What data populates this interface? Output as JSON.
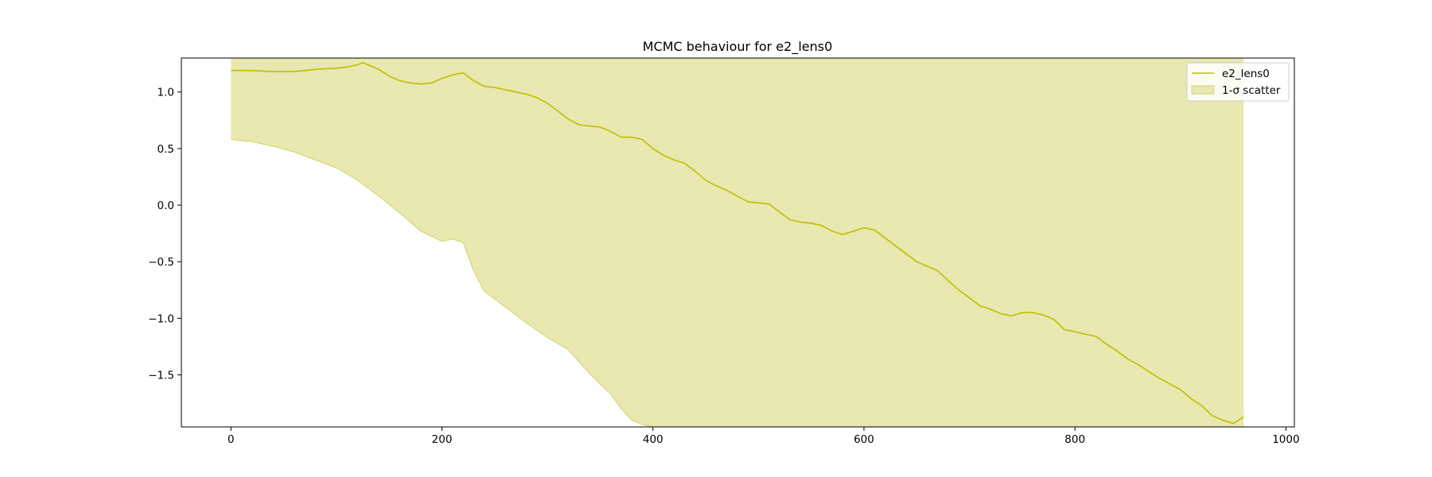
{
  "chart_data": {
    "type": "line",
    "title": "MCMC behaviour for e2_lens0",
    "xlabel": "",
    "ylabel": "",
    "xlim": [
      -47,
      1008
    ],
    "ylim": [
      -1.96,
      1.3
    ],
    "x_ticks": [
      0,
      200,
      400,
      600,
      800,
      1000
    ],
    "x_tick_labels": [
      "0",
      "200",
      "400",
      "600",
      "800",
      "1000"
    ],
    "y_ticks": [
      1.0,
      0.5,
      0.0,
      -0.5,
      -1.0,
      -1.5
    ],
    "y_tick_labels": [
      "1.0",
      "0.5",
      "0.0",
      "−0.5",
      "−1.0",
      "−1.5"
    ],
    "grid": false,
    "legend_position": "top-right",
    "colors": {
      "line": "#bfbf00",
      "band": "#e8e8b0",
      "band_edge": "#d2d26e"
    },
    "series": [
      {
        "name": "e2_lens0",
        "kind": "line",
        "x": [
          0,
          20,
          40,
          60,
          80,
          100,
          110,
          120,
          125,
          130,
          140,
          150,
          160,
          170,
          180,
          190,
          200,
          210,
          220,
          230,
          240,
          250,
          260,
          270,
          280,
          290,
          300,
          310,
          320,
          330,
          340,
          350,
          360,
          370,
          380,
          390,
          400,
          410,
          420,
          430,
          440,
          450,
          460,
          470,
          480,
          490,
          500,
          510,
          520,
          530,
          540,
          550,
          560,
          570,
          580,
          590,
          600,
          610,
          620,
          630,
          640,
          650,
          660,
          670,
          680,
          690,
          700,
          710,
          720,
          730,
          740,
          750,
          760,
          770,
          780,
          790,
          800,
          810,
          820,
          830,
          840,
          850,
          860,
          870,
          880,
          890,
          900,
          910,
          920,
          930,
          940,
          950,
          960
        ],
        "values": [
          1.19,
          1.19,
          1.18,
          1.18,
          1.2,
          1.21,
          1.22,
          1.24,
          1.26,
          1.24,
          1.2,
          1.14,
          1.1,
          1.08,
          1.07,
          1.08,
          1.12,
          1.15,
          1.17,
          1.1,
          1.05,
          1.04,
          1.02,
          1.0,
          0.98,
          0.95,
          0.9,
          0.83,
          0.76,
          0.71,
          0.7,
          0.69,
          0.65,
          0.6,
          0.6,
          0.58,
          0.5,
          0.44,
          0.4,
          0.37,
          0.3,
          0.22,
          0.17,
          0.13,
          0.08,
          0.03,
          0.02,
          0.01,
          -0.06,
          -0.13,
          -0.15,
          -0.16,
          -0.18,
          -0.23,
          -0.26,
          -0.23,
          -0.2,
          -0.22,
          -0.29,
          -0.36,
          -0.43,
          -0.5,
          -0.54,
          -0.58,
          -0.67,
          -0.75,
          -0.82,
          -0.89,
          -0.92,
          -0.96,
          -0.98,
          -0.95,
          -0.95,
          -0.97,
          -1.01,
          -1.1,
          -1.12,
          -1.14,
          -1.16,
          -1.23,
          -1.29,
          -1.36,
          -1.41,
          -1.47,
          -1.53,
          -1.58,
          -1.63,
          -1.71,
          -1.77,
          -1.86,
          -1.9,
          -1.93,
          -1.87
        ]
      },
      {
        "name": "1-σ scatter",
        "kind": "band",
        "x": [
          0,
          20,
          40,
          60,
          80,
          100,
          120,
          140,
          160,
          180,
          200,
          210,
          220,
          230,
          240,
          260,
          280,
          300,
          320,
          340,
          360,
          370,
          380,
          390,
          400,
          420,
          440,
          460,
          480,
          500,
          550,
          600,
          650,
          700,
          750,
          800,
          850,
          900,
          960
        ],
        "lower": [
          0.58,
          0.56,
          0.52,
          0.47,
          0.4,
          0.33,
          0.22,
          0.08,
          -0.07,
          -0.23,
          -0.32,
          -0.3,
          -0.33,
          -0.58,
          -0.76,
          -0.9,
          -1.04,
          -1.17,
          -1.28,
          -1.49,
          -1.67,
          -1.8,
          -1.9,
          -1.94,
          -1.96,
          -1.96,
          -1.96,
          -1.96,
          -1.96,
          -1.96,
          -1.96,
          -1.96,
          -1.96,
          -1.96,
          -1.96,
          -1.96,
          -1.96,
          -1.96,
          -1.96
        ],
        "upper": [
          1.3,
          1.3,
          1.3,
          1.3,
          1.3,
          1.3,
          1.3,
          1.3,
          1.3,
          1.3,
          1.3,
          1.3,
          1.3,
          1.3,
          1.3,
          1.3,
          1.3,
          1.3,
          1.3,
          1.3,
          1.3,
          1.3,
          1.3,
          1.3,
          1.3,
          1.3,
          1.3,
          1.3,
          1.3,
          1.3,
          1.3,
          1.3,
          1.3,
          1.3,
          1.3,
          1.3,
          1.3,
          1.3,
          1.3
        ]
      }
    ],
    "legend": [
      {
        "label": "e2_lens0",
        "kind": "line"
      },
      {
        "label": "1-σ scatter",
        "kind": "patch"
      }
    ]
  }
}
